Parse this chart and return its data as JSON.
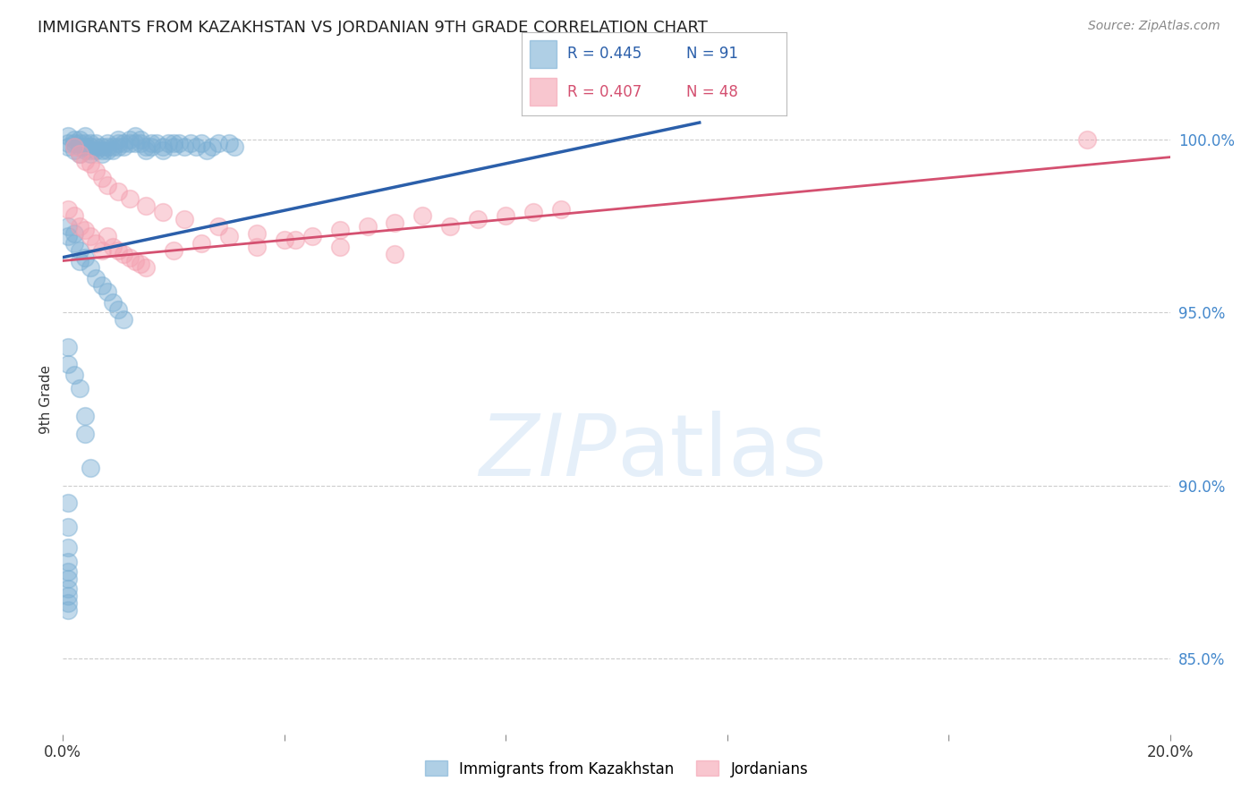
{
  "title": "IMMIGRANTS FROM KAZAKHSTAN VS JORDANIAN 9TH GRADE CORRELATION CHART",
  "source": "Source: ZipAtlas.com",
  "ylabel": "9th Grade",
  "xlim": [
    0.0,
    0.2
  ],
  "ylim": [
    0.828,
    1.022
  ],
  "yticks_right": [
    0.85,
    0.9,
    0.95,
    1.0
  ],
  "ytick_labels_right": [
    "85.0%",
    "90.0%",
    "95.0%",
    "100.0%"
  ],
  "blue_color": "#7BAFD4",
  "pink_color": "#F4A0B0",
  "blue_line_color": "#2B5FAA",
  "pink_line_color": "#D45070",
  "legend_blue_r": "R = 0.445",
  "legend_blue_n": "N = 91",
  "legend_pink_r": "R = 0.407",
  "legend_pink_n": "N = 48",
  "right_tick_color": "#4488CC",
  "grid_color": "#CCCCCC",
  "title_fontsize": 13,
  "blue_n": 91,
  "pink_n": 48,
  "blue_x": [
    0.001,
    0.001,
    0.001,
    0.002,
    0.002,
    0.002,
    0.003,
    0.003,
    0.003,
    0.003,
    0.004,
    0.004,
    0.004,
    0.004,
    0.005,
    0.005,
    0.005,
    0.005,
    0.006,
    0.006,
    0.006,
    0.007,
    0.007,
    0.007,
    0.008,
    0.008,
    0.008,
    0.009,
    0.009,
    0.01,
    0.01,
    0.01,
    0.011,
    0.011,
    0.012,
    0.012,
    0.013,
    0.013,
    0.014,
    0.014,
    0.015,
    0.015,
    0.016,
    0.016,
    0.017,
    0.018,
    0.018,
    0.019,
    0.02,
    0.02,
    0.021,
    0.022,
    0.023,
    0.024,
    0.025,
    0.026,
    0.027,
    0.028,
    0.03,
    0.031,
    0.001,
    0.001,
    0.002,
    0.002,
    0.003,
    0.003,
    0.004,
    0.005,
    0.006,
    0.007,
    0.008,
    0.009,
    0.01,
    0.011,
    0.001,
    0.001,
    0.002,
    0.003,
    0.004,
    0.004,
    0.005,
    0.001,
    0.001,
    0.001,
    0.001,
    0.001,
    0.001,
    0.001,
    0.001,
    0.001,
    0.001
  ],
  "blue_y": [
    0.999,
    1.001,
    0.998,
    1.0,
    0.999,
    0.997,
    0.999,
    1.0,
    0.998,
    0.996,
    0.999,
    0.998,
    0.997,
    1.001,
    0.998,
    0.999,
    0.997,
    0.996,
    0.998,
    0.997,
    0.999,
    0.998,
    0.997,
    0.996,
    0.999,
    0.998,
    0.997,
    0.998,
    0.997,
    0.999,
    0.998,
    1.0,
    0.999,
    0.998,
    1.0,
    0.999,
    1.001,
    0.999,
    1.0,
    0.999,
    0.998,
    0.997,
    0.999,
    0.998,
    0.999,
    0.998,
    0.997,
    0.999,
    0.999,
    0.998,
    0.999,
    0.998,
    0.999,
    0.998,
    0.999,
    0.997,
    0.998,
    0.999,
    0.999,
    0.998,
    0.975,
    0.972,
    0.973,
    0.97,
    0.968,
    0.965,
    0.966,
    0.963,
    0.96,
    0.958,
    0.956,
    0.953,
    0.951,
    0.948,
    0.94,
    0.935,
    0.932,
    0.928,
    0.92,
    0.915,
    0.905,
    0.895,
    0.888,
    0.882,
    0.878,
    0.875,
    0.873,
    0.87,
    0.868,
    0.866,
    0.864
  ],
  "pink_x": [
    0.001,
    0.002,
    0.003,
    0.004,
    0.005,
    0.006,
    0.007,
    0.008,
    0.009,
    0.01,
    0.011,
    0.012,
    0.013,
    0.014,
    0.015,
    0.02,
    0.025,
    0.03,
    0.035,
    0.04,
    0.045,
    0.05,
    0.055,
    0.06,
    0.065,
    0.07,
    0.075,
    0.08,
    0.085,
    0.09,
    0.002,
    0.003,
    0.004,
    0.005,
    0.006,
    0.007,
    0.008,
    0.01,
    0.012,
    0.015,
    0.018,
    0.022,
    0.028,
    0.035,
    0.042,
    0.05,
    0.06,
    0.185
  ],
  "pink_y": [
    0.98,
    0.978,
    0.975,
    0.974,
    0.972,
    0.97,
    0.968,
    0.972,
    0.969,
    0.968,
    0.967,
    0.966,
    0.965,
    0.964,
    0.963,
    0.968,
    0.97,
    0.972,
    0.969,
    0.971,
    0.972,
    0.974,
    0.975,
    0.976,
    0.978,
    0.975,
    0.977,
    0.978,
    0.979,
    0.98,
    0.998,
    0.996,
    0.994,
    0.993,
    0.991,
    0.989,
    0.987,
    0.985,
    0.983,
    0.981,
    0.979,
    0.977,
    0.975,
    0.973,
    0.971,
    0.969,
    0.967,
    1.0
  ],
  "blue_trendline_x": [
    0.0,
    0.115
  ],
  "blue_trendline_y": [
    0.966,
    1.005
  ],
  "pink_trendline_x": [
    0.0,
    0.2
  ],
  "pink_trendline_y": [
    0.965,
    0.995
  ]
}
